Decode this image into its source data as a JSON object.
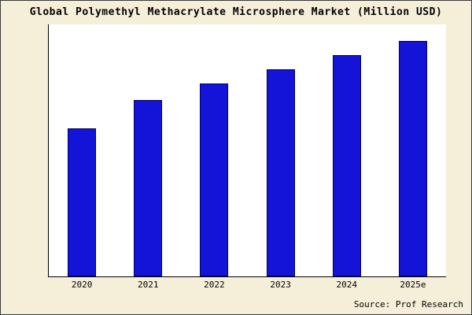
{
  "title": "Global Polymethyl Methacrylate Microsphere Market (Million USD)",
  "source": "Source: Prof Research",
  "colors": {
    "background": "#f5efd9",
    "bar_fill": "#1414d9",
    "bar_border": "#000066",
    "axis": "#000000",
    "text": "#000000"
  },
  "chart_data": {
    "type": "bar",
    "categories": [
      "2020",
      "2021",
      "2022",
      "2023",
      "2024",
      "2025e"
    ],
    "values": [
      63,
      75,
      82,
      88,
      94,
      100
    ],
    "title": "Global Polymethyl Methacrylate Microsphere Market (Million USD)",
    "xlabel": "",
    "ylabel": "",
    "ylim": [
      0,
      107
    ],
    "grid": false,
    "legend": false,
    "y_axis_ticks_visible": false,
    "bar_color": "#1414d9",
    "bar_border_color": "#000066",
    "plot_background": "#ffffff"
  }
}
